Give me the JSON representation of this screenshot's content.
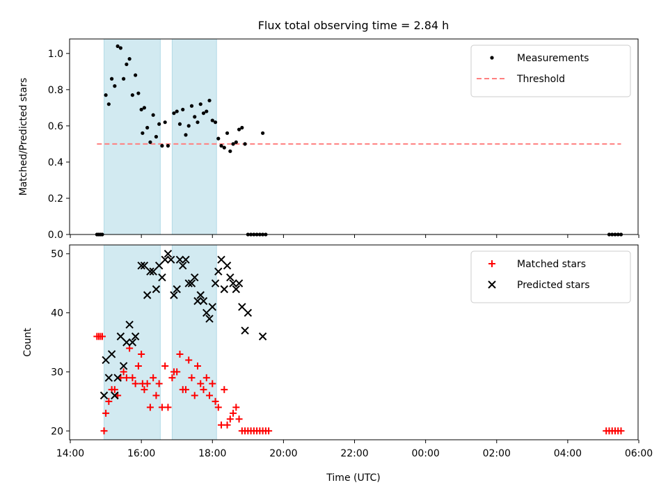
{
  "chart_data": [
    {
      "type": "scatter",
      "title": "Flux total observing time = 2.84 h",
      "ylabel": "Matched/Predicted stars",
      "xlabel": "",
      "xlim": [
        "14:00",
        "06:00"
      ],
      "ylim": [
        0,
        1.08
      ],
      "yticks": [
        "0.0",
        "0.2",
        "0.4",
        "0.6",
        "0.8",
        "1.0"
      ],
      "legend": "top-right",
      "shaded_spans": [
        [
          "14:57",
          "16:32"
        ],
        [
          "16:52",
          "18:07"
        ]
      ],
      "shade_color": "#add8e6",
      "threshold": {
        "name": "Threshold",
        "value": 0.5,
        "x_range": [
          "14:45",
          "05:30"
        ],
        "color": "#ff7f7f"
      },
      "series": [
        {
          "name": "Measurements",
          "color": "#000000",
          "points": [
            [
              "14:45",
              0
            ],
            [
              "14:48",
              0
            ],
            [
              "14:51",
              0
            ],
            [
              "14:54",
              0
            ],
            [
              "15:00",
              0.77
            ],
            [
              "15:05",
              0.72
            ],
            [
              "15:10",
              0.86
            ],
            [
              "15:15",
              0.82
            ],
            [
              "15:20",
              1.04
            ],
            [
              "15:25",
              1.03
            ],
            [
              "15:30",
              0.86
            ],
            [
              "15:35",
              0.94
            ],
            [
              "15:40",
              0.97
            ],
            [
              "15:45",
              0.77
            ],
            [
              "15:50",
              0.88
            ],
            [
              "15:55",
              0.78
            ],
            [
              "16:00",
              0.69
            ],
            [
              "16:02",
              0.56
            ],
            [
              "16:05",
              0.7
            ],
            [
              "16:10",
              0.59
            ],
            [
              "16:15",
              0.51
            ],
            [
              "16:20",
              0.66
            ],
            [
              "16:25",
              0.54
            ],
            [
              "16:30",
              0.61
            ],
            [
              "16:35",
              0.49
            ],
            [
              "16:40",
              0.62
            ],
            [
              "16:45",
              0.49
            ],
            [
              "16:55",
              0.67
            ],
            [
              "17:00",
              0.68
            ],
            [
              "17:05",
              0.61
            ],
            [
              "17:10",
              0.69
            ],
            [
              "17:15",
              0.55
            ],
            [
              "17:20",
              0.6
            ],
            [
              "17:25",
              0.71
            ],
            [
              "17:30",
              0.65
            ],
            [
              "17:35",
              0.62
            ],
            [
              "17:40",
              0.72
            ],
            [
              "17:45",
              0.67
            ],
            [
              "17:50",
              0.68
            ],
            [
              "17:55",
              0.74
            ],
            [
              "18:00",
              0.63
            ],
            [
              "18:05",
              0.62
            ],
            [
              "18:10",
              0.53
            ],
            [
              "18:15",
              0.49
            ],
            [
              "18:20",
              0.48
            ],
            [
              "18:25",
              0.56
            ],
            [
              "18:30",
              0.46
            ],
            [
              "18:35",
              0.5
            ],
            [
              "18:40",
              0.51
            ],
            [
              "18:45",
              0.58
            ],
            [
              "18:50",
              0.59
            ],
            [
              "18:55",
              0.5
            ],
            [
              "19:00",
              0
            ],
            [
              "19:05",
              0
            ],
            [
              "19:10",
              0
            ],
            [
              "19:15",
              0
            ],
            [
              "19:20",
              0
            ],
            [
              "19:25",
              0
            ],
            [
              "19:30",
              0
            ],
            [
              "19:25",
              0.56
            ],
            [
              "05:10",
              0
            ],
            [
              "05:15",
              0
            ],
            [
              "05:20",
              0
            ],
            [
              "05:25",
              0
            ],
            [
              "05:30",
              0
            ]
          ]
        }
      ]
    },
    {
      "type": "scatter",
      "title": "",
      "ylabel": "Count",
      "xlabel": "Time (UTC)",
      "xlim": [
        "14:00",
        "06:00"
      ],
      "ylim": [
        18.5,
        51.5
      ],
      "yticks": [
        "20",
        "30",
        "40",
        "50"
      ],
      "xticks": [
        "14:00",
        "16:00",
        "18:00",
        "20:00",
        "22:00",
        "00:00",
        "02:00",
        "04:00",
        "06:00"
      ],
      "legend": "top-right",
      "shaded_spans": [
        [
          "14:57",
          "16:32"
        ],
        [
          "16:52",
          "18:07"
        ]
      ],
      "shade_color": "#add8e6",
      "series": [
        {
          "name": "Matched stars",
          "marker": "plus",
          "color": "#ff0000",
          "points": [
            [
              "14:45",
              36
            ],
            [
              "14:48",
              36
            ],
            [
              "14:51",
              36
            ],
            [
              "14:54",
              36
            ],
            [
              "14:57",
              20
            ],
            [
              "15:00",
              23
            ],
            [
              "15:05",
              25
            ],
            [
              "15:10",
              27
            ],
            [
              "15:15",
              27
            ],
            [
              "15:20",
              26
            ],
            [
              "15:25",
              29
            ],
            [
              "15:30",
              30
            ],
            [
              "15:35",
              29
            ],
            [
              "15:40",
              34
            ],
            [
              "15:45",
              29
            ],
            [
              "15:50",
              28
            ],
            [
              "15:55",
              31
            ],
            [
              "16:00",
              33
            ],
            [
              "16:02",
              28
            ],
            [
              "16:05",
              27
            ],
            [
              "16:10",
              28
            ],
            [
              "16:15",
              24
            ],
            [
              "16:20",
              29
            ],
            [
              "16:25",
              26
            ],
            [
              "16:30",
              28
            ],
            [
              "16:35",
              24
            ],
            [
              "16:40",
              31
            ],
            [
              "16:45",
              24
            ],
            [
              "16:52",
              29
            ],
            [
              "16:55",
              30
            ],
            [
              "17:00",
              30
            ],
            [
              "17:05",
              33
            ],
            [
              "17:10",
              27
            ],
            [
              "17:15",
              27
            ],
            [
              "17:20",
              32
            ],
            [
              "17:25",
              29
            ],
            [
              "17:30",
              26
            ],
            [
              "17:35",
              31
            ],
            [
              "17:40",
              28
            ],
            [
              "17:45",
              27
            ],
            [
              "17:50",
              29
            ],
            [
              "17:55",
              26
            ],
            [
              "18:00",
              28
            ],
            [
              "18:05",
              25
            ],
            [
              "18:10",
              24
            ],
            [
              "18:15",
              21
            ],
            [
              "18:20",
              27
            ],
            [
              "18:25",
              21
            ],
            [
              "18:30",
              22
            ],
            [
              "18:35",
              23
            ],
            [
              "18:40",
              24
            ],
            [
              "18:45",
              22
            ],
            [
              "18:50",
              20
            ],
            [
              "18:55",
              20
            ],
            [
              "19:00",
              20
            ],
            [
              "19:05",
              20
            ],
            [
              "19:10",
              20
            ],
            [
              "19:15",
              20
            ],
            [
              "19:20",
              20
            ],
            [
              "19:25",
              20
            ],
            [
              "19:30",
              20
            ],
            [
              "19:35",
              20
            ],
            [
              "05:05",
              20
            ],
            [
              "05:10",
              20
            ],
            [
              "05:15",
              20
            ],
            [
              "05:20",
              20
            ],
            [
              "05:25",
              20
            ],
            [
              "05:30",
              20
            ]
          ]
        },
        {
          "name": "Predicted stars",
          "marker": "x",
          "color": "#000000",
          "points": [
            [
              "14:57",
              26
            ],
            [
              "15:00",
              32
            ],
            [
              "15:05",
              29
            ],
            [
              "15:10",
              33
            ],
            [
              "15:15",
              26
            ],
            [
              "15:20",
              29
            ],
            [
              "15:25",
              36
            ],
            [
              "15:30",
              31
            ],
            [
              "15:35",
              35
            ],
            [
              "15:40",
              38
            ],
            [
              "15:45",
              35
            ],
            [
              "15:50",
              36
            ],
            [
              "16:00",
              48
            ],
            [
              "16:05",
              48
            ],
            [
              "16:10",
              43
            ],
            [
              "16:15",
              47
            ],
            [
              "16:20",
              47
            ],
            [
              "16:25",
              44
            ],
            [
              "16:30",
              48
            ],
            [
              "16:35",
              46
            ],
            [
              "16:40",
              49
            ],
            [
              "16:45",
              50
            ],
            [
              "16:50",
              49
            ],
            [
              "16:55",
              43
            ],
            [
              "17:00",
              44
            ],
            [
              "17:05",
              49
            ],
            [
              "17:10",
              48
            ],
            [
              "17:15",
              49
            ],
            [
              "17:20",
              45
            ],
            [
              "17:25",
              45
            ],
            [
              "17:30",
              46
            ],
            [
              "17:35",
              42
            ],
            [
              "17:40",
              43
            ],
            [
              "17:45",
              42
            ],
            [
              "17:50",
              40
            ],
            [
              "17:55",
              39
            ],
            [
              "18:00",
              41
            ],
            [
              "18:05",
              45
            ],
            [
              "18:10",
              47
            ],
            [
              "18:15",
              49
            ],
            [
              "18:20",
              44
            ],
            [
              "18:25",
              48
            ],
            [
              "18:30",
              46
            ],
            [
              "18:35",
              45
            ],
            [
              "18:40",
              44
            ],
            [
              "18:45",
              45
            ],
            [
              "18:50",
              41
            ],
            [
              "18:55",
              37
            ],
            [
              "19:00",
              40
            ],
            [
              "19:25",
              36
            ]
          ]
        }
      ]
    }
  ]
}
